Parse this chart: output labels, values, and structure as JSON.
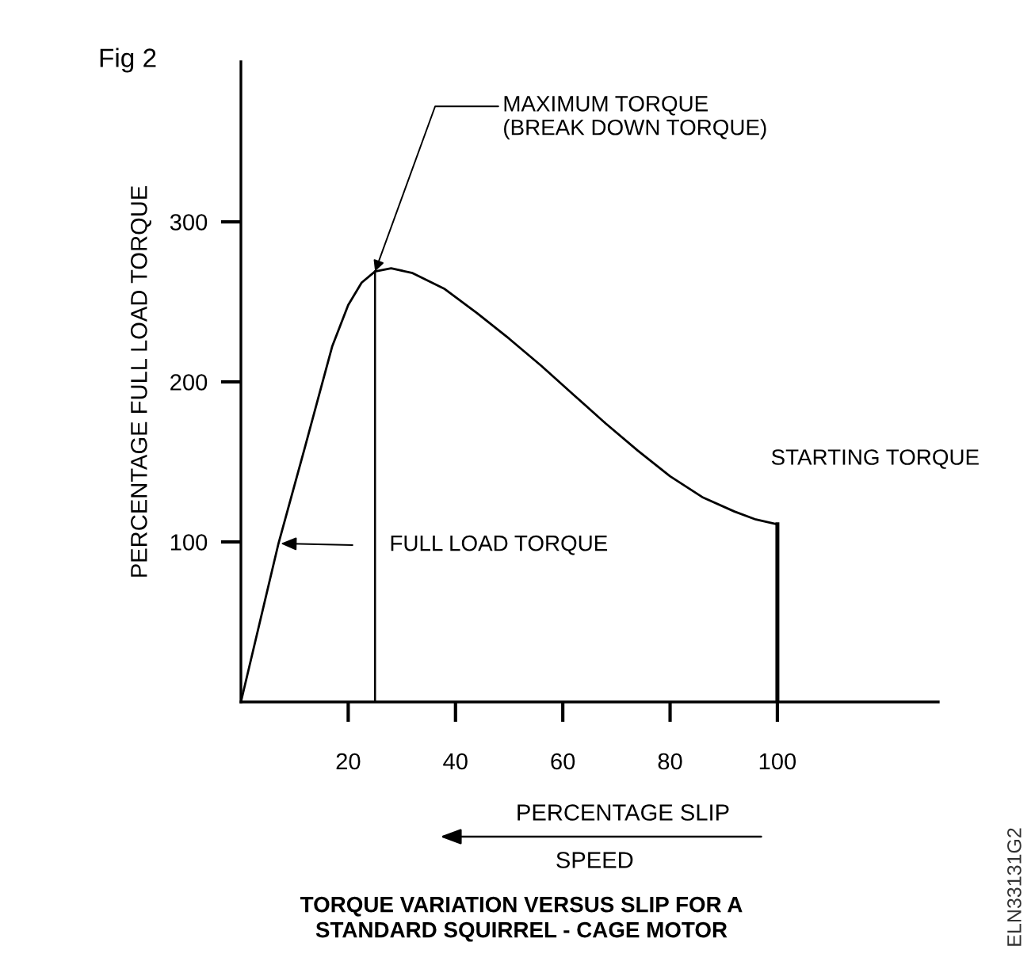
{
  "chart_data": {
    "type": "line",
    "title": "TORQUE VARIATION VERSUS SLIP FOR A\nSTANDARD SQUIRREL - CAGE MOTOR",
    "xlabel": "PERCENTAGE SLIP",
    "ylabel": "PERCENTAGE FULL LOAD TORQUE",
    "series": [
      {
        "color": "#000000",
        "x": [
          0,
          7,
          12,
          17,
          20,
          22.5,
          25,
          28,
          32,
          38,
          44,
          50,
          56,
          62,
          68,
          74,
          80,
          86,
          92,
          96,
          100
        ],
        "values": [
          0,
          99,
          160,
          222,
          248,
          262,
          269,
          271,
          268,
          258,
          243,
          227,
          210,
          192,
          174,
          157,
          141,
          128,
          119,
          114,
          111
        ]
      },
      {
        "color": "#000000",
        "x": [
          25,
          25
        ],
        "values": [
          0,
          269
        ]
      },
      {
        "color": "#000000",
        "x": [
          100,
          100
        ],
        "values": [
          0,
          111
        ]
      }
    ],
    "annotations": [
      "Fig 2",
      {
        "text": "MAXIMUM TORQUE\n(BREAK DOWN TORQUE)",
        "x": 25,
        "y": 269
      },
      "FULL LOAD TORQUE",
      {
        "text": "STARTING TORQUE",
        "x": 100,
        "y": 111
      },
      "SPEED",
      "ELN33131G2"
    ],
    "xlim": [
      0,
      130
    ],
    "ylim": [
      0,
      400
    ],
    "xticks": [
      20,
      40,
      60,
      80,
      100
    ],
    "yticks": [
      100,
      200,
      300
    ],
    "grid": false,
    "legend": false,
    "marker": "none",
    "line_style": "solid"
  }
}
